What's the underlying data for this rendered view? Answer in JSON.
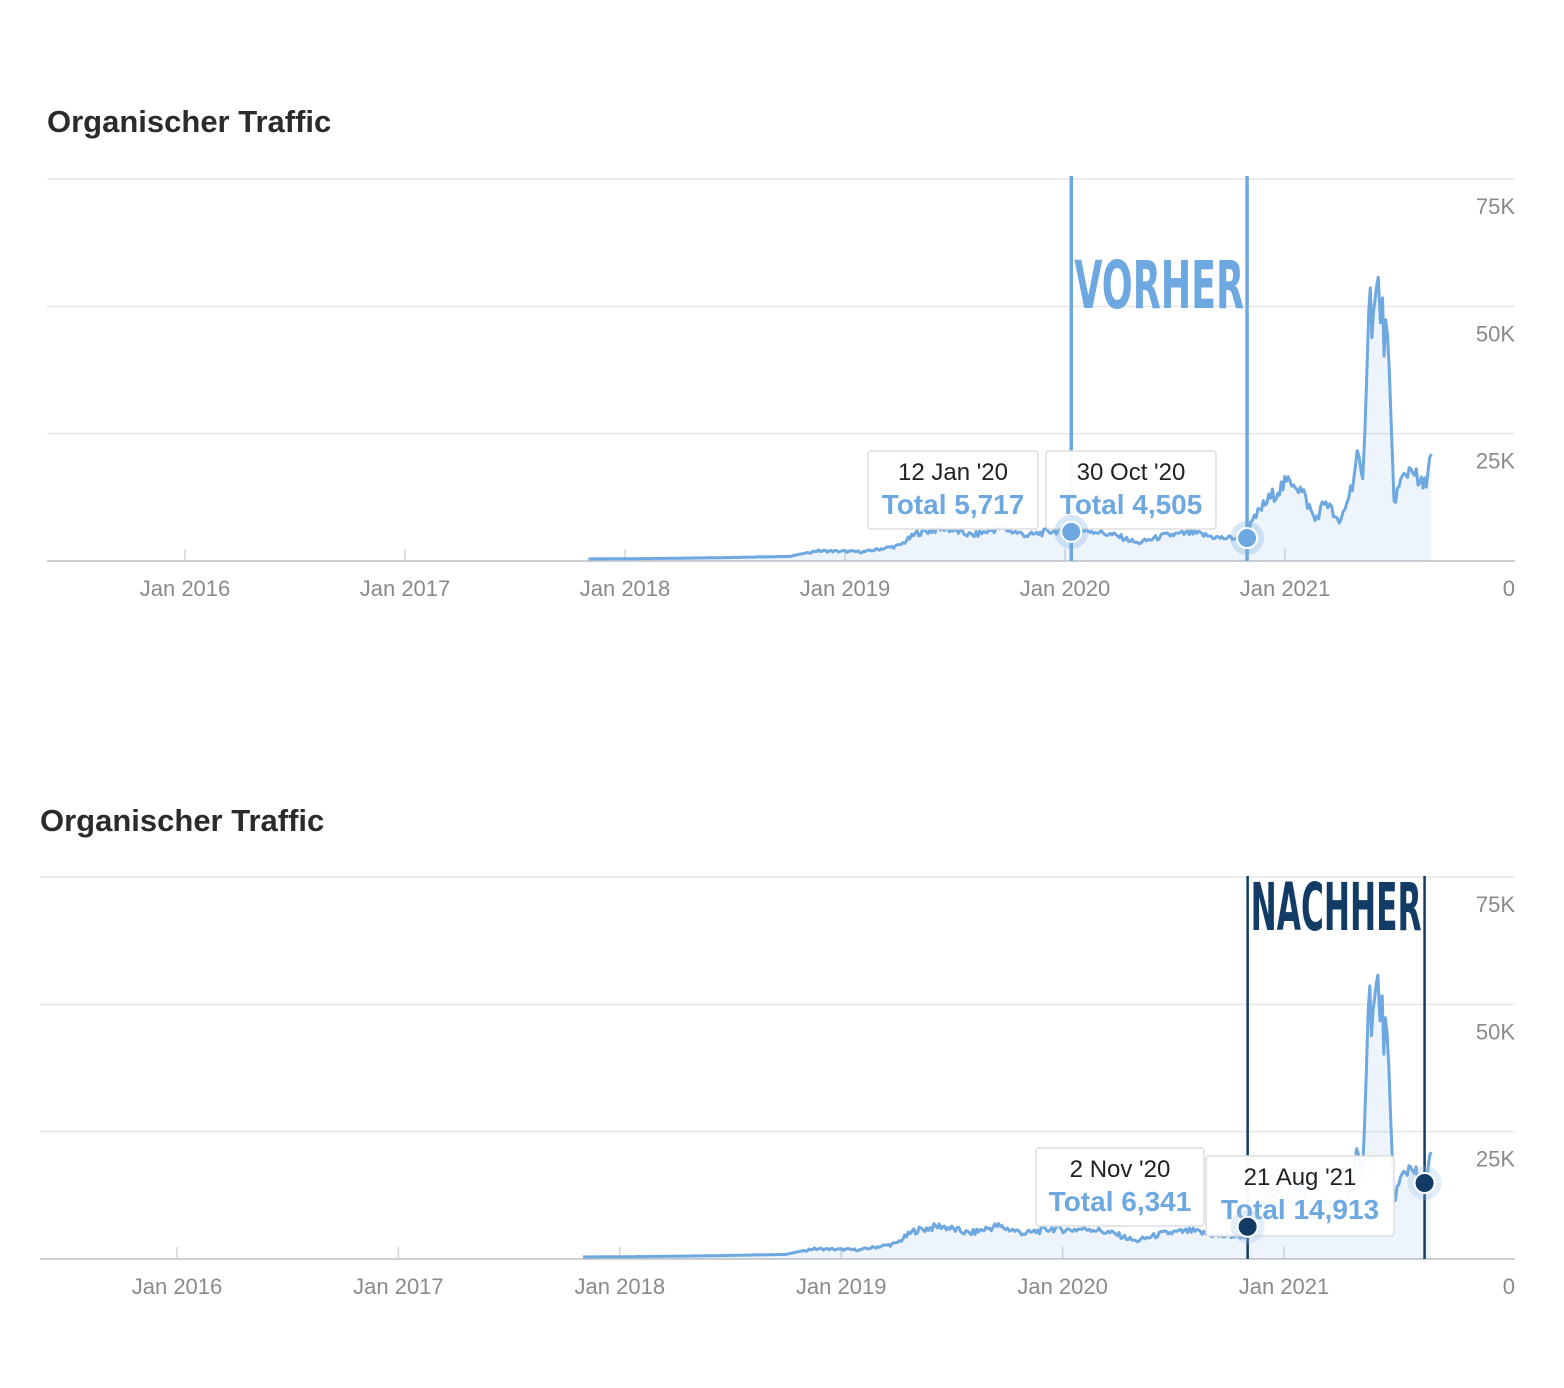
{
  "panels": [
    {
      "title": "Organischer Traffic",
      "annotation": {
        "text": "VORHER",
        "color": "#6ea8e0",
        "from": "2020-01-12",
        "to": "2020-10-30"
      },
      "tooltips": [
        {
          "date": "12 Jan '20",
          "total": "Total 5,717"
        },
        {
          "date": "30 Oct '20",
          "total": "Total 4,505"
        }
      ]
    },
    {
      "title": "Organischer Traffic",
      "annotation": {
        "text": "NACHHER",
        "color": "#123c66",
        "from": "2020-11-02",
        "to": "2021-08-21"
      },
      "tooltips": [
        {
          "date": "2 Nov '20",
          "total": "Total 6,341"
        },
        {
          "date": "21 Aug '21",
          "total": "Total 14,913"
        }
      ]
    }
  ],
  "chart_data": [
    {
      "type": "area",
      "title": "Organischer Traffic",
      "x_ticks": [
        "Jan 2016",
        "Jan 2017",
        "Jan 2018",
        "Jan 2019",
        "Jan 2020",
        "Jan 2021"
      ],
      "y_ticks": [
        "0",
        "25K",
        "50K",
        "75K"
      ],
      "ylim": [
        0,
        75000
      ],
      "series": [
        {
          "color": "#6ea8e0",
          "points": [
            [
              "2017-11-01",
              400
            ],
            [
              "2018-03-01",
              500
            ],
            [
              "2018-07-01",
              700
            ],
            [
              "2018-10-01",
              900
            ],
            [
              "2018-11-15",
              2000
            ],
            [
              "2019-02-01",
              1800
            ],
            [
              "2019-04-01",
              3000
            ],
            [
              "2019-05-01",
              5500
            ],
            [
              "2019-06-15",
              6500
            ],
            [
              "2019-08-01",
              5000
            ],
            [
              "2019-09-15",
              6500
            ],
            [
              "2019-11-01",
              5000
            ],
            [
              "2019-12-15",
              6000
            ],
            [
              "2020-01-12",
              5717
            ],
            [
              "2020-02-15",
              6000
            ],
            [
              "2020-04-01",
              4800
            ],
            [
              "2020-05-01",
              3500
            ],
            [
              "2020-06-15",
              5000
            ],
            [
              "2020-08-01",
              5500
            ],
            [
              "2020-09-15",
              4500
            ],
            [
              "2020-10-30",
              4505
            ],
            [
              "2020-11-02",
              6341
            ],
            [
              "2020-11-20",
              10000
            ],
            [
              "2020-12-20",
              14000
            ],
            [
              "2021-01-15",
              16000
            ],
            [
              "2021-02-01",
              13000
            ],
            [
              "2021-02-20",
              8000
            ],
            [
              "2021-03-10",
              12000
            ],
            [
              "2021-04-01",
              7000
            ],
            [
              "2021-04-20",
              14000
            ],
            [
              "2021-05-01",
              20000
            ],
            [
              "2021-05-10",
              15000
            ],
            [
              "2021-05-20",
              52000
            ],
            [
              "2021-05-28",
              48000
            ],
            [
              "2021-06-05",
              53000
            ],
            [
              "2021-06-12",
              47000
            ],
            [
              "2021-06-20",
              42000
            ],
            [
              "2021-06-26",
              26000
            ],
            [
              "2021-07-01",
              12000
            ],
            [
              "2021-07-15",
              16000
            ],
            [
              "2021-08-01",
              19000
            ],
            [
              "2021-08-10",
              15000
            ],
            [
              "2021-08-21",
              14913
            ],
            [
              "2021-09-01",
              21000
            ]
          ]
        }
      ]
    },
    {
      "type": "area",
      "title": "Organischer Traffic",
      "x_ticks": [
        "Jan 2016",
        "Jan 2017",
        "Jan 2018",
        "Jan 2019",
        "Jan 2020",
        "Jan 2021"
      ],
      "y_ticks": [
        "0",
        "25K",
        "50K",
        "75K"
      ],
      "ylim": [
        0,
        75000
      ],
      "series": [
        {
          "color": "#6ea8e0",
          "points": [
            [
              "2017-11-01",
              400
            ],
            [
              "2018-03-01",
              500
            ],
            [
              "2018-07-01",
              700
            ],
            [
              "2018-10-01",
              900
            ],
            [
              "2018-11-15",
              2000
            ],
            [
              "2019-02-01",
              1800
            ],
            [
              "2019-04-01",
              3000
            ],
            [
              "2019-05-01",
              5500
            ],
            [
              "2019-06-15",
              6500
            ],
            [
              "2019-08-01",
              5000
            ],
            [
              "2019-09-15",
              6500
            ],
            [
              "2019-11-01",
              5000
            ],
            [
              "2019-12-15",
              6000
            ],
            [
              "2020-01-12",
              5717
            ],
            [
              "2020-02-15",
              6000
            ],
            [
              "2020-04-01",
              4800
            ],
            [
              "2020-05-01",
              3500
            ],
            [
              "2020-06-15",
              5000
            ],
            [
              "2020-08-01",
              5500
            ],
            [
              "2020-09-15",
              4500
            ],
            [
              "2020-10-30",
              4505
            ],
            [
              "2020-11-02",
              6341
            ],
            [
              "2020-11-20",
              10000
            ],
            [
              "2020-12-20",
              14000
            ],
            [
              "2021-01-15",
              16000
            ],
            [
              "2021-02-01",
              13000
            ],
            [
              "2021-02-20",
              8000
            ],
            [
              "2021-03-10",
              12000
            ],
            [
              "2021-04-01",
              7000
            ],
            [
              "2021-04-20",
              14000
            ],
            [
              "2021-05-01",
              20000
            ],
            [
              "2021-05-10",
              15000
            ],
            [
              "2021-05-20",
              52000
            ],
            [
              "2021-05-28",
              48000
            ],
            [
              "2021-06-05",
              53000
            ],
            [
              "2021-06-12",
              47000
            ],
            [
              "2021-06-20",
              42000
            ],
            [
              "2021-06-26",
              26000
            ],
            [
              "2021-07-01",
              12000
            ],
            [
              "2021-07-15",
              16000
            ],
            [
              "2021-08-01",
              19000
            ],
            [
              "2021-08-10",
              15000
            ],
            [
              "2021-08-21",
              14913
            ],
            [
              "2021-09-01",
              21000
            ]
          ]
        }
      ]
    }
  ]
}
